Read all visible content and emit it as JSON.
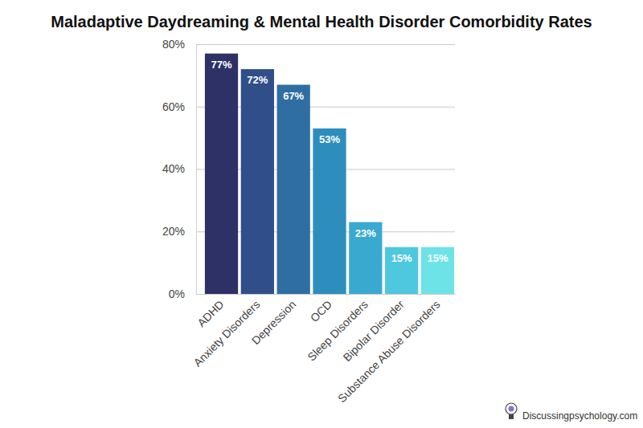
{
  "chart_data": {
    "type": "bar",
    "title": "Maladaptive Daydreaming & Mental Health Disorder Comorbidity Rates",
    "categories": [
      "ADHD",
      "Anxiety Disorders",
      "Depression",
      "OCD",
      "Sleep Disorders",
      "Bipolar Disorder",
      "Substance Abuse Disorders"
    ],
    "values": [
      77,
      72,
      67,
      53,
      23,
      15,
      15
    ],
    "value_labels": [
      "77%",
      "72%",
      "67%",
      "53%",
      "23%",
      "15%",
      "15%"
    ],
    "colors": [
      "#2e3166",
      "#304e88",
      "#2e6ea2",
      "#2d8ebd",
      "#3aa9d0",
      "#4ec8de",
      "#6de3e7"
    ],
    "ylim": [
      0,
      80
    ],
    "yticks": [
      {
        "value": 0,
        "label": "0%"
      },
      {
        "value": 20,
        "label": "20%"
      },
      {
        "value": 40,
        "label": "40%"
      },
      {
        "value": 60,
        "label": "60%"
      },
      {
        "value": 80,
        "label": "80%"
      }
    ],
    "grid": true,
    "data_labels": true,
    "annotations": [
      "Discussingpsychology.com"
    ]
  }
}
